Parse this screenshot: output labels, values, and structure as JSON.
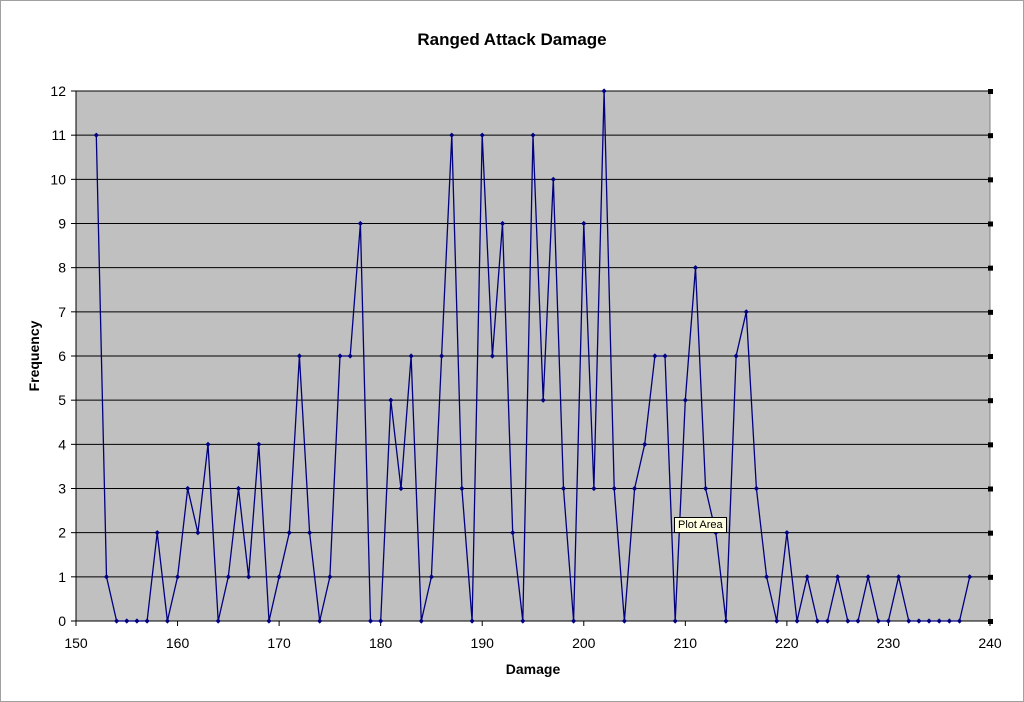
{
  "chart_data": {
    "type": "line",
    "title": "Ranged Attack Damage",
    "xlabel": "Damage",
    "ylabel": "Frequency",
    "xlim": [
      150,
      240
    ],
    "ylim": [
      0,
      12
    ],
    "x_ticks": [
      150,
      160,
      170,
      180,
      190,
      200,
      210,
      220,
      230,
      240
    ],
    "y_ticks": [
      0,
      1,
      2,
      3,
      4,
      5,
      6,
      7,
      8,
      9,
      10,
      11,
      12
    ],
    "grid": true,
    "plot_background": "#c0c0c0",
    "line_color": "#000080",
    "series": [
      {
        "x": [
          152,
          153,
          154,
          155,
          156,
          157,
          158,
          159,
          160,
          161,
          162,
          163,
          164,
          165,
          166,
          167,
          168,
          169,
          170,
          171,
          172,
          173,
          174,
          175,
          176,
          177,
          178,
          179,
          180,
          181,
          182,
          183,
          184,
          185,
          186,
          187,
          188,
          189,
          190,
          191,
          192,
          193,
          194,
          195,
          196,
          197,
          198,
          199,
          200,
          201,
          202,
          203,
          204,
          205,
          206,
          207,
          208,
          209,
          210,
          211,
          212,
          213,
          214,
          215,
          216,
          217,
          218,
          219,
          220,
          221,
          222,
          223,
          224,
          225,
          226,
          227,
          228,
          229,
          230,
          231,
          232,
          233,
          234,
          235,
          236,
          237,
          238
        ],
        "values": [
          11,
          1,
          0,
          0,
          0,
          0,
          2,
          0,
          1,
          3,
          2,
          4,
          0,
          1,
          3,
          1,
          4,
          0,
          1,
          2,
          6,
          2,
          0,
          1,
          6,
          6,
          9,
          0,
          0,
          5,
          3,
          6,
          0,
          1,
          6,
          11,
          3,
          0,
          11,
          6,
          9,
          2,
          0,
          11,
          5,
          10,
          3,
          0,
          9,
          3,
          12,
          3,
          0,
          3,
          4,
          6,
          6,
          0,
          5,
          8,
          3,
          2,
          0,
          6,
          7,
          3,
          1,
          0,
          2,
          0,
          1,
          0,
          0,
          1,
          0,
          0,
          1,
          0,
          0,
          1,
          0,
          0,
          0,
          0,
          0,
          0,
          1
        ]
      }
    ]
  },
  "tooltip": "Plot Area"
}
